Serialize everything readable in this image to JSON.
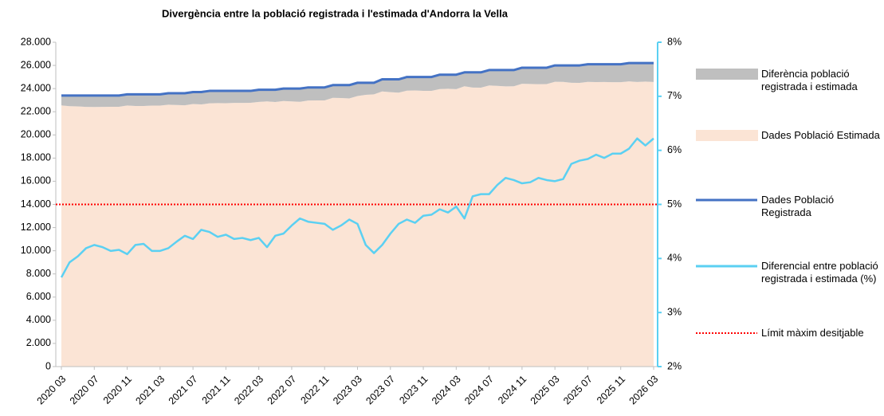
{
  "chart_data": {
    "type": "line",
    "title": "Divergència entre la població registrada i l'estimada d'Andorra la Vella",
    "categories": [
      "2020 03",
      null,
      null,
      null,
      "2020 07",
      null,
      null,
      null,
      "2020 11",
      null,
      null,
      null,
      "2021 03",
      null,
      null,
      null,
      "2021 07",
      null,
      null,
      null,
      "2021 11",
      null,
      null,
      null,
      "2022 03",
      null,
      null,
      null,
      "2022 07",
      null,
      null,
      null,
      "2022 11",
      null,
      null,
      null,
      "2023 03",
      null,
      null,
      null,
      "2023 07",
      null,
      null,
      null,
      "2023 11",
      null,
      null,
      null,
      "2024 03",
      null,
      null,
      null,
      "2024 07",
      null,
      null,
      null,
      "2024 11",
      null,
      null,
      null,
      "2025 03",
      null,
      null,
      null,
      "2025 07",
      null,
      null,
      null,
      "2025 11",
      null,
      null,
      null,
      "2026 03"
    ],
    "series": [
      {
        "name": "Diferència població registrada i estimada",
        "kind": "difference",
        "color": "#bfbfbf"
      },
      {
        "name": "Dades Població Estimada",
        "kind": "area",
        "color": "#fbe4d5",
        "values": [
          22550,
          22480,
          22460,
          22420,
          22410,
          22420,
          22430,
          22430,
          22540,
          22500,
          22500,
          22530,
          22530,
          22610,
          22580,
          22560,
          22670,
          22630,
          22730,
          22750,
          22740,
          22760,
          22760,
          22770,
          22850,
          22890,
          22840,
          22930,
          22890,
          22860,
          22970,
          22980,
          22980,
          23200,
          23180,
          23150,
          23360,
          23460,
          23500,
          23750,
          23690,
          23650,
          23820,
          23840,
          23800,
          23800,
          23960,
          23980,
          23950,
          24200,
          24090,
          24080,
          24270,
          24230,
          24190,
          24200,
          24410,
          24400,
          24380,
          24390,
          24590,
          24580,
          24500,
          24490,
          24580,
          24560,
          24570,
          24550,
          24550,
          24620,
          24570,
          24600,
          24570
        ]
      },
      {
        "name": "Dades Població Registrada",
        "kind": "line",
        "color": "#4472c4",
        "values": [
          23400,
          23400,
          23400,
          23400,
          23400,
          23400,
          23400,
          23400,
          23500,
          23500,
          23500,
          23500,
          23500,
          23600,
          23600,
          23600,
          23700,
          23700,
          23800,
          23800,
          23800,
          23800,
          23800,
          23800,
          23900,
          23900,
          23900,
          24000,
          24000,
          24000,
          24100,
          24100,
          24100,
          24300,
          24300,
          24300,
          24500,
          24500,
          24500,
          24800,
          24800,
          24800,
          25000,
          25000,
          25000,
          25000,
          25200,
          25200,
          25200,
          25400,
          25400,
          25400,
          25600,
          25600,
          25600,
          25600,
          25800,
          25800,
          25800,
          25800,
          26000,
          26000,
          26000,
          26000,
          26100,
          26100,
          26100,
          26100,
          26100,
          26200,
          26200,
          26200,
          26200
        ]
      },
      {
        "name": "Diferencial entre població registrada i estimada (%)",
        "kind": "line",
        "axis": "y2",
        "color": "#5bd0f2",
        "values": [
          3.65,
          3.93,
          4.04,
          4.19,
          4.25,
          4.21,
          4.14,
          4.16,
          4.08,
          4.25,
          4.27,
          4.14,
          4.14,
          4.19,
          4.31,
          4.42,
          4.36,
          4.53,
          4.49,
          4.4,
          4.44,
          4.36,
          4.38,
          4.34,
          4.38,
          4.21,
          4.42,
          4.46,
          4.61,
          4.74,
          4.68,
          4.66,
          4.64,
          4.53,
          4.61,
          4.72,
          4.64,
          4.25,
          4.1,
          4.25,
          4.46,
          4.64,
          4.72,
          4.66,
          4.79,
          4.81,
          4.91,
          4.85,
          4.96,
          4.74,
          5.15,
          5.19,
          5.19,
          5.36,
          5.49,
          5.45,
          5.39,
          5.41,
          5.49,
          5.45,
          5.43,
          5.47,
          5.75,
          5.81,
          5.84,
          5.92,
          5.86,
          5.94,
          5.94,
          6.03,
          6.22,
          6.09,
          6.22
        ]
      }
    ],
    "reference_line": {
      "name": "Límit màxim desitjable",
      "value": 5,
      "axis": "y2",
      "color": "#ff0000"
    },
    "ylim": [
      0,
      28000
    ],
    "yticks": [
      0,
      {
        "value": 2000,
        "label": "2.000"
      },
      {
        "value": 4000,
        "label": "4.000"
      },
      {
        "value": 6000,
        "label": "6.000"
      },
      {
        "value": 8000,
        "label": "8.000"
      },
      {
        "value": 10000,
        "label": "10.000"
      },
      {
        "value": 12000,
        "label": "12.000"
      },
      {
        "value": 14000,
        "label": "14.000"
      },
      {
        "value": 16000,
        "label": "16.000"
      },
      {
        "value": 18000,
        "label": "18.000"
      },
      {
        "value": 20000,
        "label": "20.000"
      },
      {
        "value": 22000,
        "label": "22.000"
      },
      {
        "value": 24000,
        "label": "24.000"
      },
      {
        "value": 26000,
        "label": "26.000"
      },
      {
        "value": 28000,
        "label": "28.000"
      }
    ],
    "y2lim": [
      2,
      8
    ],
    "y2ticks": [
      {
        "value": 2,
        "label": "2%"
      },
      {
        "value": 3,
        "label": "3%"
      },
      {
        "value": 4,
        "label": "4%"
      },
      {
        "value": 5,
        "label": "5%"
      },
      {
        "value": 6,
        "label": "6%"
      },
      {
        "value": 7,
        "label": "7%"
      },
      {
        "value": 8,
        "label": "8%"
      }
    ],
    "y2_axis_color": "#5bd0f2"
  }
}
